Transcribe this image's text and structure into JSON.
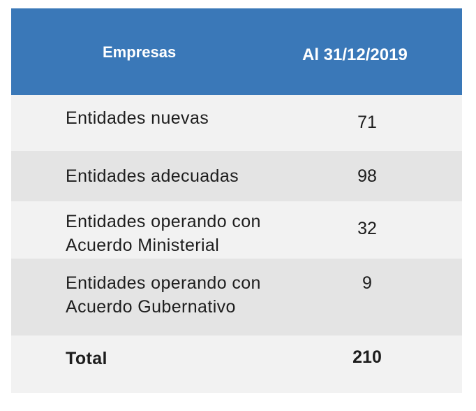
{
  "header": {
    "col1": "Empresas",
    "col2": "Al 31/12/2019"
  },
  "rows": [
    {
      "label_lines": [
        "Entidades nuevas"
      ],
      "value": "71"
    },
    {
      "label_lines": [
        "Entidades adecuadas"
      ],
      "value": "98"
    },
    {
      "label_lines": [
        "Entidades operando con",
        "Acuerdo Ministerial"
      ],
      "value": "32"
    },
    {
      "label_lines": [
        "Entidades operando con",
        "Acuerdo Gubernativo"
      ],
      "value": "9"
    }
  ],
  "total": {
    "label": "Total",
    "value": "210"
  },
  "colors": {
    "header_bg": "#3a78b8",
    "row_light": "#f2f2f2",
    "row_dark": "#e4e4e4"
  }
}
